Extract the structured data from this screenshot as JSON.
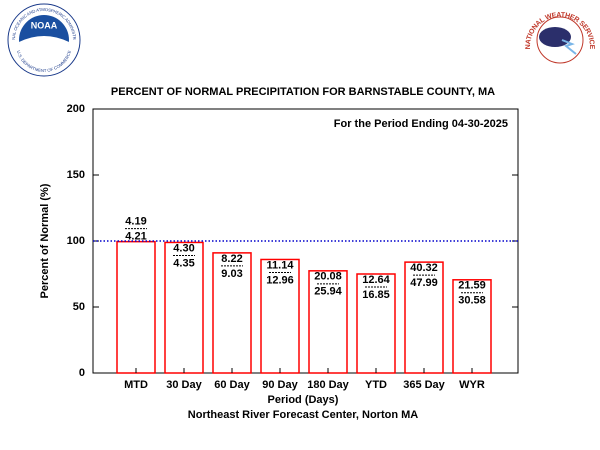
{
  "chart_data": {
    "type": "bar",
    "title": "PERCENT OF NORMAL PRECIPITATION FOR BARNSTABLE COUNTY, MA",
    "annotation": "For the Period Ending 04-30-2025",
    "x_label": "Period (Days)",
    "y_label": "Percent of Normal (%)",
    "credit": "Northeast River Forecast Center, Norton MA",
    "categories": [
      "MTD",
      "30 Day",
      "60 Day",
      "90 Day",
      "180 Day",
      "YTD",
      "365 Day",
      "WYR"
    ],
    "values": [
      99.5,
      98.9,
      91.0,
      86.0,
      77.4,
      75.0,
      84.0,
      70.6
    ],
    "observed": [
      "4.19",
      "4.30",
      "8.22",
      "11.14",
      "20.08",
      "12.64",
      "40.32",
      "21.59"
    ],
    "normal": [
      "4.21",
      "4.35",
      "9.03",
      "12.96",
      "25.94",
      "16.85",
      "47.99",
      "30.58"
    ],
    "color": "#ff0000",
    "reference_line": 100,
    "reference_color": "#0000cc",
    "ylim": [
      0,
      200
    ],
    "yticks": [
      0,
      50,
      100,
      150,
      200
    ]
  },
  "logos": {
    "noaa": {
      "name": "NOAA",
      "ring_top": "NATIONAL OCEANIC AND ATMOSPHERIC ADMINISTRATION",
      "ring_bottom": "U.S. DEPARTMENT OF COMMERCE"
    },
    "nws": {
      "ring": "NATIONAL WEATHER SERVICE"
    }
  }
}
